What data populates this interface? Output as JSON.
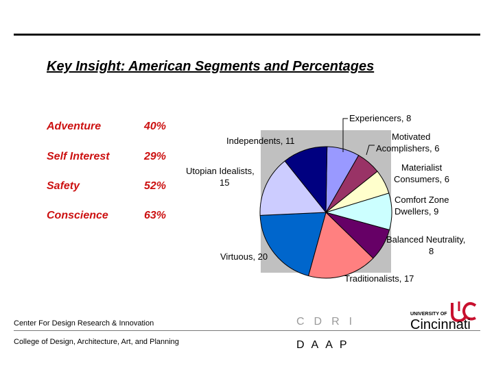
{
  "title": "Key Insight:  American Segments and Percentages",
  "segments": [
    {
      "name": "Adventure",
      "pct": "40%"
    },
    {
      "name": "Self Interest",
      "pct": "29%"
    },
    {
      "name": "Safety",
      "pct": "52%"
    },
    {
      "name": "Conscience",
      "pct": "63%"
    }
  ],
  "chart_data": {
    "type": "pie",
    "categories": [
      "Experiencers",
      "Motivated Acomplishers",
      "Materialist Consumers",
      "Comfort Zone Dwellers",
      "Balanced Neutrality",
      "Traditionalists",
      "Virtuous",
      "Utopian Idealists",
      "Independents"
    ],
    "values": [
      8,
      6,
      6,
      9,
      8,
      17,
      20,
      15,
      11
    ],
    "colors": [
      "#9999ff",
      "#993366",
      "#ffffcc",
      "#ccffff",
      "#660066",
      "#ff8080",
      "#0066cc",
      "#ccccff",
      "#000080"
    ],
    "background": "#c0c0c0",
    "labels": [
      {
        "lines": [
          "Experiencers, 8"
        ]
      },
      {
        "lines": [
          "Motivated",
          "Acomplishers, 6"
        ]
      },
      {
        "lines": [
          "Materialist",
          "Consumers, 6"
        ]
      },
      {
        "lines": [
          "Comfort Zone",
          "Dwellers, 9"
        ]
      },
      {
        "lines": [
          "Balanced Neutrality,",
          "8"
        ]
      },
      {
        "lines": [
          "Traditionalists, 17"
        ]
      },
      {
        "lines": [
          "Virtuous, 20"
        ]
      },
      {
        "lines": [
          "Utopian Idealists,",
          "15"
        ]
      },
      {
        "lines": [
          "Independents, 11"
        ]
      }
    ]
  },
  "footer": {
    "center": "Center For Design Research & Innovation",
    "college": "College of Design, Architecture, Art, and Planning",
    "cdri": "CDRI",
    "daap": "DAAP",
    "university_small": "UNIVERSITY OF",
    "university_name": "Cincinnati"
  }
}
